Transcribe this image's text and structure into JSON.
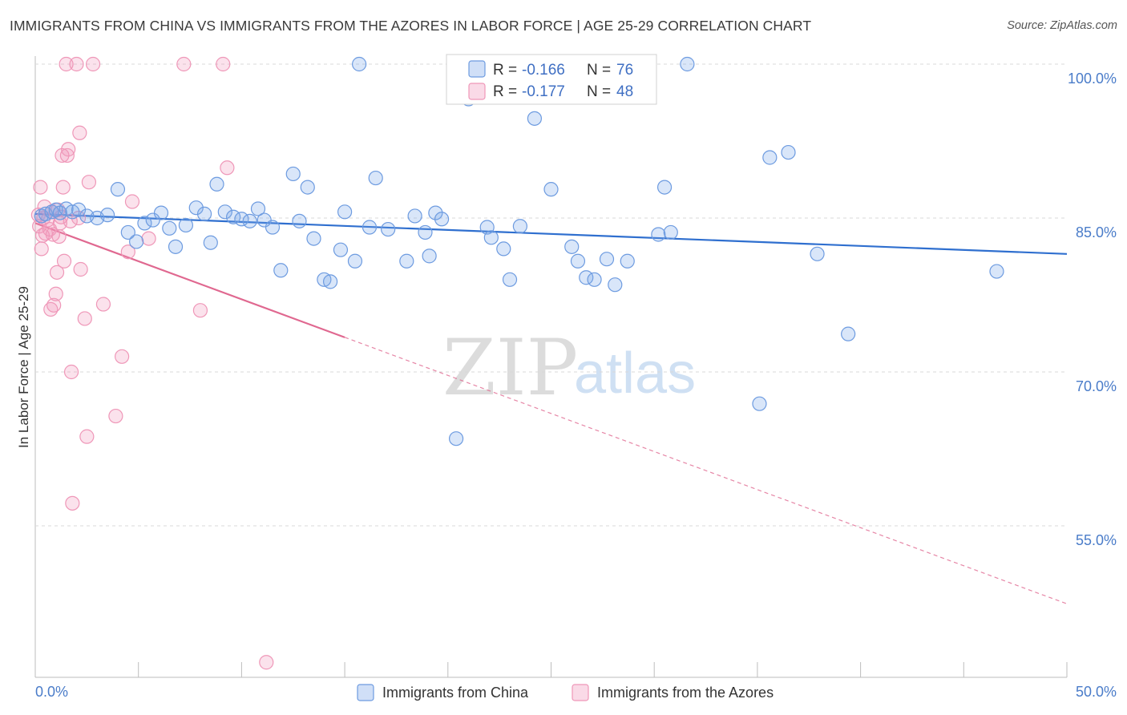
{
  "title": "IMMIGRANTS FROM CHINA VS IMMIGRANTS FROM THE AZORES IN LABOR FORCE | AGE 25-29 CORRELATION CHART",
  "source": "Source: ZipAtlas.com",
  "watermark": {
    "zip": "ZIP",
    "atlas": "atlas"
  },
  "colors": {
    "china_fill": "rgba(120,164,232,0.28)",
    "china_stroke": "#6d9be0",
    "china_line": "#2f6fcf",
    "azores_fill": "rgba(240,150,185,0.28)",
    "azores_stroke": "#ef97b8",
    "azores_line": "#e06890",
    "tick_text": "#4a7cc9",
    "grid": "#d9d9d9"
  },
  "chart_data": {
    "type": "scatter",
    "title": "IMMIGRANTS FROM CHINA VS IMMIGRANTS FROM THE AZORES IN LABOR FORCE | AGE 25-29 CORRELATION CHART",
    "xlabel": "",
    "ylabel": "In Labor Force | Age 25-29",
    "xlim": [
      0,
      50
    ],
    "ylim": [
      41,
      102
    ],
    "x_tick_labels": [
      "0.0%",
      "50.0%"
    ],
    "y_ticks": [
      55,
      70,
      85,
      100
    ],
    "y_tick_labels": [
      "55.0%",
      "70.0%",
      "85.0%",
      "100.0%"
    ],
    "legend": {
      "r_label": "R =",
      "n_label": "N =",
      "entries": [
        {
          "r": "-0.166",
          "n": "76"
        },
        {
          "r": "-0.177",
          "n": "48"
        }
      ]
    },
    "series": [
      {
        "name": "Immigrants from China",
        "trend": {
          "x": [
            0,
            50
          ],
          "y": [
            85.4,
            81.5
          ],
          "dashed_from_x": null
        },
        "points": [
          {
            "x": 0.3,
            "y": 85.2
          },
          {
            "x": 0.5,
            "y": 85.4
          },
          {
            "x": 0.8,
            "y": 85.6
          },
          {
            "x": 1.0,
            "y": 85.8
          },
          {
            "x": 1.2,
            "y": 85.5
          },
          {
            "x": 1.5,
            "y": 85.9
          },
          {
            "x": 1.8,
            "y": 85.6
          },
          {
            "x": 2.1,
            "y": 85.8
          },
          {
            "x": 2.5,
            "y": 85.2
          },
          {
            "x": 3.0,
            "y": 85.0
          },
          {
            "x": 3.5,
            "y": 85.3
          },
          {
            "x": 4.0,
            "y": 87.8
          },
          {
            "x": 4.5,
            "y": 83.6
          },
          {
            "x": 4.9,
            "y": 82.7
          },
          {
            "x": 5.3,
            "y": 84.5
          },
          {
            "x": 5.7,
            "y": 84.8
          },
          {
            "x": 6.1,
            "y": 85.5
          },
          {
            "x": 6.5,
            "y": 84.0
          },
          {
            "x": 6.8,
            "y": 82.2
          },
          {
            "x": 7.3,
            "y": 84.3
          },
          {
            "x": 7.8,
            "y": 86.0
          },
          {
            "x": 8.2,
            "y": 85.4
          },
          {
            "x": 8.5,
            "y": 82.6
          },
          {
            "x": 8.8,
            "y": 88.3
          },
          {
            "x": 9.2,
            "y": 85.6
          },
          {
            "x": 9.6,
            "y": 85.1
          },
          {
            "x": 10.0,
            "y": 84.9
          },
          {
            "x": 10.4,
            "y": 84.7
          },
          {
            "x": 10.8,
            "y": 85.9
          },
          {
            "x": 11.1,
            "y": 84.8
          },
          {
            "x": 11.5,
            "y": 84.1
          },
          {
            "x": 11.9,
            "y": 79.9
          },
          {
            "x": 12.5,
            "y": 89.3
          },
          {
            "x": 12.8,
            "y": 84.7
          },
          {
            "x": 13.2,
            "y": 88.0
          },
          {
            "x": 13.5,
            "y": 83.0
          },
          {
            "x": 14.0,
            "y": 79.0
          },
          {
            "x": 14.3,
            "y": 78.8
          },
          {
            "x": 14.8,
            "y": 81.9
          },
          {
            "x": 15.0,
            "y": 85.6
          },
          {
            "x": 15.5,
            "y": 80.8
          },
          {
            "x": 15.7,
            "y": 100.0
          },
          {
            "x": 16.2,
            "y": 84.1
          },
          {
            "x": 16.5,
            "y": 88.9
          },
          {
            "x": 17.1,
            "y": 83.9
          },
          {
            "x": 18.0,
            "y": 80.8
          },
          {
            "x": 18.4,
            "y": 85.2
          },
          {
            "x": 18.9,
            "y": 83.6
          },
          {
            "x": 19.1,
            "y": 81.3
          },
          {
            "x": 19.4,
            "y": 85.5
          },
          {
            "x": 19.7,
            "y": 84.9
          },
          {
            "x": 20.4,
            "y": 63.5
          },
          {
            "x": 21.0,
            "y": 96.6
          },
          {
            "x": 21.9,
            "y": 84.1
          },
          {
            "x": 22.1,
            "y": 83.1
          },
          {
            "x": 22.7,
            "y": 82.0
          },
          {
            "x": 23.0,
            "y": 79.0
          },
          {
            "x": 23.5,
            "y": 84.2
          },
          {
            "x": 24.2,
            "y": 94.7
          },
          {
            "x": 25.0,
            "y": 87.8
          },
          {
            "x": 26.0,
            "y": 82.2
          },
          {
            "x": 26.3,
            "y": 80.8
          },
          {
            "x": 26.7,
            "y": 79.2
          },
          {
            "x": 27.1,
            "y": 79.0
          },
          {
            "x": 27.7,
            "y": 81.0
          },
          {
            "x": 28.1,
            "y": 78.5
          },
          {
            "x": 28.7,
            "y": 80.8
          },
          {
            "x": 30.2,
            "y": 83.4
          },
          {
            "x": 30.5,
            "y": 88.0
          },
          {
            "x": 30.8,
            "y": 83.6
          },
          {
            "x": 31.6,
            "y": 100.0
          },
          {
            "x": 35.1,
            "y": 66.9
          },
          {
            "x": 35.6,
            "y": 90.9
          },
          {
            "x": 36.5,
            "y": 91.4
          },
          {
            "x": 37.9,
            "y": 81.5
          },
          {
            "x": 39.4,
            "y": 73.7
          },
          {
            "x": 46.6,
            "y": 79.8
          }
        ]
      },
      {
        "name": "Immigrants from the Azores",
        "trend": {
          "x": [
            0,
            50
          ],
          "y": [
            84.5,
            47.4
          ],
          "dashed_from_x": 15
        },
        "points": [
          {
            "x": 0.15,
            "y": 85.3
          },
          {
            "x": 0.2,
            "y": 84.2
          },
          {
            "x": 0.25,
            "y": 88.0
          },
          {
            "x": 0.3,
            "y": 82.0
          },
          {
            "x": 0.35,
            "y": 83.3
          },
          {
            "x": 0.4,
            "y": 85.0
          },
          {
            "x": 0.45,
            "y": 86.1
          },
          {
            "x": 0.5,
            "y": 83.5
          },
          {
            "x": 0.6,
            "y": 84.8
          },
          {
            "x": 0.7,
            "y": 83.9
          },
          {
            "x": 0.75,
            "y": 76.1
          },
          {
            "x": 0.8,
            "y": 85.6
          },
          {
            "x": 0.85,
            "y": 83.4
          },
          {
            "x": 0.9,
            "y": 76.5
          },
          {
            "x": 1.0,
            "y": 77.6
          },
          {
            "x": 1.05,
            "y": 79.7
          },
          {
            "x": 1.1,
            "y": 85.8
          },
          {
            "x": 1.15,
            "y": 83.2
          },
          {
            "x": 1.2,
            "y": 84.5
          },
          {
            "x": 1.25,
            "y": 85.1
          },
          {
            "x": 1.3,
            "y": 91.1
          },
          {
            "x": 1.35,
            "y": 88.0
          },
          {
            "x": 1.4,
            "y": 80.8
          },
          {
            "x": 1.5,
            "y": 100.0
          },
          {
            "x": 1.55,
            "y": 91.1
          },
          {
            "x": 1.6,
            "y": 91.7
          },
          {
            "x": 1.7,
            "y": 84.7
          },
          {
            "x": 1.75,
            "y": 70.0
          },
          {
            "x": 1.8,
            "y": 57.2
          },
          {
            "x": 2.0,
            "y": 100.0
          },
          {
            "x": 2.1,
            "y": 85.0
          },
          {
            "x": 2.15,
            "y": 93.3
          },
          {
            "x": 2.2,
            "y": 80.0
          },
          {
            "x": 2.4,
            "y": 75.2
          },
          {
            "x": 2.5,
            "y": 63.7
          },
          {
            "x": 2.6,
            "y": 88.5
          },
          {
            "x": 2.8,
            "y": 100.0
          },
          {
            "x": 3.3,
            "y": 76.6
          },
          {
            "x": 3.9,
            "y": 65.7
          },
          {
            "x": 4.2,
            "y": 71.5
          },
          {
            "x": 4.5,
            "y": 81.7
          },
          {
            "x": 4.7,
            "y": 86.6
          },
          {
            "x": 5.5,
            "y": 83.0
          },
          {
            "x": 7.2,
            "y": 100.0
          },
          {
            "x": 8.0,
            "y": 76.0
          },
          {
            "x": 9.1,
            "y": 100.0
          },
          {
            "x": 9.3,
            "y": 89.9
          },
          {
            "x": 11.2,
            "y": 41.7
          }
        ]
      }
    ]
  },
  "legend_bottom": [
    {
      "label": "Immigrants from China"
    },
    {
      "label": "Immigrants from the Azores"
    }
  ]
}
